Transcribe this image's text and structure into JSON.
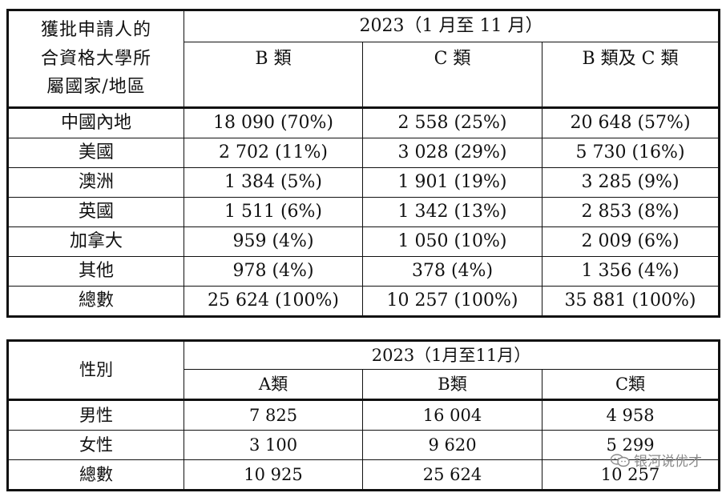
{
  "table1": {
    "corner_label": "獲批申請人的\n合資格大學所\n屬國家/地區",
    "year_header": "2023（1 月至 11 月）",
    "col_headers": [
      "B 類",
      "C 類",
      "B 類及 C 類"
    ],
    "rows": [
      {
        "label": "中國內地",
        "cells": [
          "18 090 (70%)",
          "2 558 (25%)",
          "20 648 (57%)"
        ]
      },
      {
        "label": "美國",
        "cells": [
          "2 702 (11%)",
          "3 028 (29%)",
          "5 730 (16%)"
        ]
      },
      {
        "label": "澳洲",
        "cells": [
          "1 384 (5%)",
          "1 901 (19%)",
          "3 285 (9%)"
        ]
      },
      {
        "label": "英國",
        "cells": [
          "1 511 (6%)",
          "1 342 (13%)",
          "2 853 (8%)"
        ]
      },
      {
        "label": "加拿大",
        "cells": [
          "959 (4%)",
          "1 050 (10%)",
          "2 009 (6%)"
        ]
      },
      {
        "label": "其他",
        "cells": [
          "978 (4%)",
          "378 (4%)",
          "1 356 (4%)"
        ]
      },
      {
        "label": "總數",
        "cells": [
          "25 624 (100%)",
          "10 257 (100%)",
          "35 881 (100%)"
        ]
      }
    ]
  },
  "table2": {
    "corner_label": "性別",
    "year_header": "2023（1月至11月）",
    "col_headers": [
      "A類",
      "B類",
      "C類"
    ],
    "rows": [
      {
        "label": "男性",
        "cells": [
          "7 825",
          "16 004",
          "4 958"
        ]
      },
      {
        "label": "女性",
        "cells": [
          "3 100",
          "9 620",
          "5 299"
        ]
      },
      {
        "label": "總數",
        "cells": [
          "10 925",
          "25 624",
          "10 257"
        ]
      }
    ]
  },
  "watermark": {
    "text": "银河说优才",
    "icon": "wechat-icon"
  }
}
